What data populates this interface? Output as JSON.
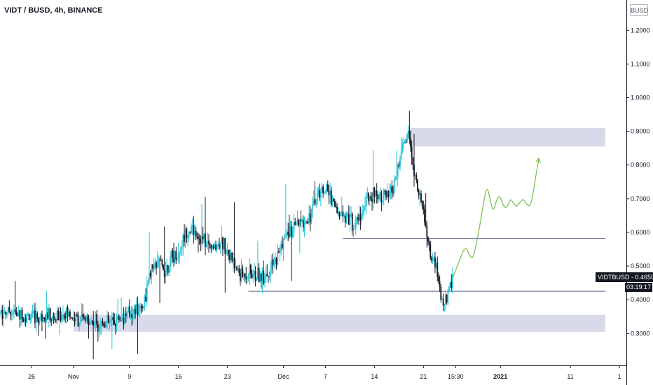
{
  "header": {
    "title": "VIDT / BUSD, 4h, BINANCE",
    "currency_button": "BUSD"
  },
  "price_tag": {
    "symbol_price": "VIDTBUSD - 0.4650",
    "countdown": "03:19:17"
  },
  "colors": {
    "up": "#26c6da",
    "down": "#131722",
    "zone": "#d1d4e6",
    "level_line": "#5b5f8a",
    "projection": "#7cc154"
  },
  "chart_data": {
    "type": "candlestick",
    "symbol": "VIDT / BUSD",
    "interval": "4h",
    "exchange": "BINANCE",
    "y_ticks": [
      "1.2000",
      "1.1000",
      "1.0000",
      "0.9000",
      "0.8000",
      "0.7000",
      "0.6000",
      "0.5000",
      "0.4000",
      "0.3000"
    ],
    "y_tick_values": [
      1.2,
      1.1,
      1.0,
      0.9,
      0.8,
      0.7,
      0.6,
      0.5,
      0.4,
      0.3
    ],
    "ylim": [
      0.205,
      1.29
    ],
    "x_ticks": [
      {
        "label": "26",
        "day": 26
      },
      {
        "label": "Nov",
        "day": 32
      },
      {
        "label": "9",
        "day": 40
      },
      {
        "label": "16",
        "day": 47
      },
      {
        "label": "23",
        "day": 54
      },
      {
        "label": "Dec",
        "day": 62
      },
      {
        "label": "7",
        "day": 68
      },
      {
        "label": "14",
        "day": 75
      },
      {
        "label": "21",
        "day": 82
      },
      {
        "label": "15:30",
        "day": 86.6
      },
      {
        "label": "2021",
        "day": 93,
        "bold": true
      },
      {
        "label": "11",
        "day": 103
      },
      {
        "label": "1",
        "day": 110
      }
    ],
    "xlim": [
      21.5,
      111
    ],
    "last_price": 0.465,
    "price_path": [
      [
        21.5,
        0.36
      ],
      [
        23,
        0.37
      ],
      [
        24,
        0.355
      ],
      [
        25.5,
        0.35
      ],
      [
        27,
        0.345
      ],
      [
        28,
        0.36
      ],
      [
        29,
        0.34
      ],
      [
        30,
        0.35
      ],
      [
        31,
        0.36
      ],
      [
        32,
        0.345
      ],
      [
        33,
        0.34
      ],
      [
        35,
        0.335
      ],
      [
        37,
        0.33
      ],
      [
        38,
        0.34
      ],
      [
        39,
        0.35
      ],
      [
        40,
        0.36
      ],
      [
        41,
        0.37
      ],
      [
        42,
        0.385
      ],
      [
        43,
        0.48
      ],
      [
        44,
        0.51
      ],
      [
        45,
        0.49
      ],
      [
        46,
        0.52
      ],
      [
        47,
        0.535
      ],
      [
        48,
        0.6
      ],
      [
        49,
        0.61
      ],
      [
        50,
        0.585
      ],
      [
        51,
        0.57
      ],
      [
        52,
        0.55
      ],
      [
        53,
        0.575
      ],
      [
        54,
        0.55
      ],
      [
        55,
        0.5
      ],
      [
        56,
        0.47
      ],
      [
        57,
        0.48
      ],
      [
        58,
        0.47
      ],
      [
        59,
        0.475
      ],
      [
        60,
        0.48
      ],
      [
        61,
        0.52
      ],
      [
        62,
        0.58
      ],
      [
        63,
        0.6
      ],
      [
        64,
        0.62
      ],
      [
        65,
        0.63
      ],
      [
        66,
        0.66
      ],
      [
        67,
        0.72
      ],
      [
        68,
        0.73
      ],
      [
        69,
        0.7
      ],
      [
        70,
        0.65
      ],
      [
        71,
        0.66
      ],
      [
        72,
        0.62
      ],
      [
        73,
        0.65
      ],
      [
        74,
        0.7
      ],
      [
        75,
        0.72
      ],
      [
        76,
        0.71
      ],
      [
        77,
        0.7
      ],
      [
        78,
        0.75
      ],
      [
        79,
        0.85
      ],
      [
        79.6,
        0.89
      ],
      [
        80,
        0.88
      ],
      [
        80.6,
        0.78
      ],
      [
        81.3,
        0.72
      ],
      [
        82,
        0.66
      ],
      [
        82.6,
        0.57
      ],
      [
        83.2,
        0.52
      ],
      [
        83.8,
        0.49
      ],
      [
        84.3,
        0.43
      ],
      [
        84.8,
        0.38
      ],
      [
        85.3,
        0.4
      ],
      [
        85.8,
        0.44
      ],
      [
        86.2,
        0.465
      ]
    ],
    "zones": [
      {
        "x0": 80,
        "x1": 108,
        "y0": 0.855,
        "y1": 0.91
      },
      {
        "x0": 32,
        "x1": 108,
        "y0": 0.305,
        "y1": 0.355
      }
    ],
    "levels": [
      {
        "x0": 70.5,
        "x1": 108,
        "y": 0.582
      },
      {
        "x0": 57,
        "x1": 108,
        "y": 0.425
      }
    ],
    "projection": [
      [
        86.2,
        0.465
      ],
      [
        87.2,
        0.52
      ],
      [
        88,
        0.56
      ],
      [
        88.6,
        0.53
      ],
      [
        89.1,
        0.52
      ],
      [
        89.9,
        0.6
      ],
      [
        90.6,
        0.69
      ],
      [
        91.1,
        0.74
      ],
      [
        91.6,
        0.69
      ],
      [
        92.0,
        0.66
      ],
      [
        92.5,
        0.7
      ],
      [
        92.9,
        0.71
      ],
      [
        93.4,
        0.68
      ],
      [
        93.9,
        0.67
      ],
      [
        94.4,
        0.7
      ],
      [
        94.8,
        0.69
      ],
      [
        95.3,
        0.675
      ],
      [
        95.8,
        0.69
      ],
      [
        96.3,
        0.7
      ],
      [
        96.8,
        0.68
      ],
      [
        97.4,
        0.68
      ],
      [
        98.0,
        0.76
      ],
      [
        98.5,
        0.82
      ]
    ]
  }
}
